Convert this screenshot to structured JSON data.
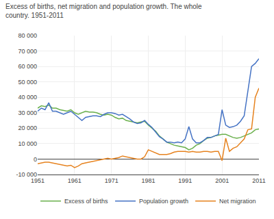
{
  "chart_data": {
    "type": "line",
    "title": "Excess of births, net migration and population growth. The whole\ncountry. 1951-2011",
    "x": [
      1951,
      1952,
      1953,
      1954,
      1955,
      1956,
      1957,
      1958,
      1959,
      1960,
      1961,
      1962,
      1963,
      1964,
      1965,
      1966,
      1967,
      1968,
      1969,
      1970,
      1971,
      1972,
      1973,
      1974,
      1975,
      1976,
      1977,
      1978,
      1979,
      1980,
      1981,
      1982,
      1983,
      1984,
      1985,
      1986,
      1987,
      1988,
      1989,
      1990,
      1991,
      1992,
      1993,
      1994,
      1995,
      1996,
      1997,
      1998,
      1999,
      2000,
      2001,
      2002,
      2003,
      2004,
      2005,
      2006,
      2007,
      2008,
      2009,
      2010,
      2011
    ],
    "series": [
      {
        "name": "Excess of births",
        "color": "#6ab04c",
        "values": [
          33000,
          34500,
          34000,
          35000,
          33000,
          33000,
          32000,
          31500,
          31000,
          32000,
          30000,
          29000,
          30000,
          31000,
          30500,
          30500,
          30000,
          29000,
          28500,
          29000,
          28500,
          27000,
          26000,
          26500,
          25000,
          24500,
          24000,
          23500,
          24000,
          24500,
          22000,
          20000,
          18000,
          15000,
          13000,
          11000,
          10000,
          9000,
          8500,
          8000,
          7500,
          6000,
          7000,
          9000,
          10000,
          12000,
          13500,
          14000,
          15000,
          15500,
          16000,
          16000,
          15000,
          14000,
          13500,
          14000,
          15000,
          16000,
          17000,
          19000,
          19500
        ]
      },
      {
        "name": "Population growth",
        "color": "#4472c4",
        "values": [
          31000,
          33000,
          32000,
          36500,
          31000,
          31000,
          30000,
          29000,
          30000,
          31000,
          29000,
          27000,
          25000,
          27000,
          27500,
          28000,
          28000,
          27500,
          29000,
          30000,
          30000,
          29500,
          28500,
          29000,
          27500,
          26000,
          24000,
          23000,
          23500,
          25000,
          22500,
          20500,
          17500,
          14500,
          13000,
          11000,
          11000,
          10500,
          11000,
          10500,
          13000,
          21000,
          13000,
          10500,
          10500,
          12000,
          14000,
          14000,
          15000,
          16000,
          32000,
          22000,
          20500,
          21000,
          22000,
          24500,
          28000,
          45000,
          60000,
          62000,
          65000
        ]
      },
      {
        "name": "Net migration",
        "color": "#e6821e",
        "values": [
          -3000,
          -2500,
          -2000,
          -2000,
          -2500,
          -3000,
          -3500,
          -4000,
          -4500,
          -4000,
          -5500,
          -4500,
          -3000,
          -2500,
          -2000,
          -1500,
          -1000,
          -500,
          0,
          500,
          0,
          500,
          1000,
          2000,
          1500,
          1000,
          500,
          0,
          0,
          1500,
          6000,
          5000,
          4000,
          3000,
          3000,
          3000,
          3500,
          4500,
          5000,
          5000,
          5000,
          4500,
          5000,
          4500,
          4500,
          5000,
          5000,
          4500,
          5000,
          5000,
          -1000,
          13500,
          5000,
          7000,
          8000,
          10500,
          13000,
          19000,
          19500,
          40000,
          46000
        ]
      }
    ],
    "xlim": [
      1951,
      2011
    ],
    "xticks": [
      1951,
      1961,
      1971,
      1981,
      1991,
      2001,
      2011
    ],
    "ylim": [
      -10000,
      80000
    ],
    "yticks": [
      {
        "value": -10000,
        "label": "-10 000"
      },
      0,
      {
        "value": 10000,
        "label": "10 000"
      },
      {
        "value": 20000,
        "label": "20 000"
      },
      {
        "value": 30000,
        "label": "30 000"
      },
      {
        "value": 40000,
        "label": "40 000"
      },
      {
        "value": 50000,
        "label": "50 000"
      },
      {
        "value": 60000,
        "label": "60 000"
      },
      {
        "value": 70000,
        "label": "70 000"
      },
      {
        "value": 80000,
        "label": "80 000"
      }
    ],
    "grid": true,
    "legend": "bottom"
  }
}
